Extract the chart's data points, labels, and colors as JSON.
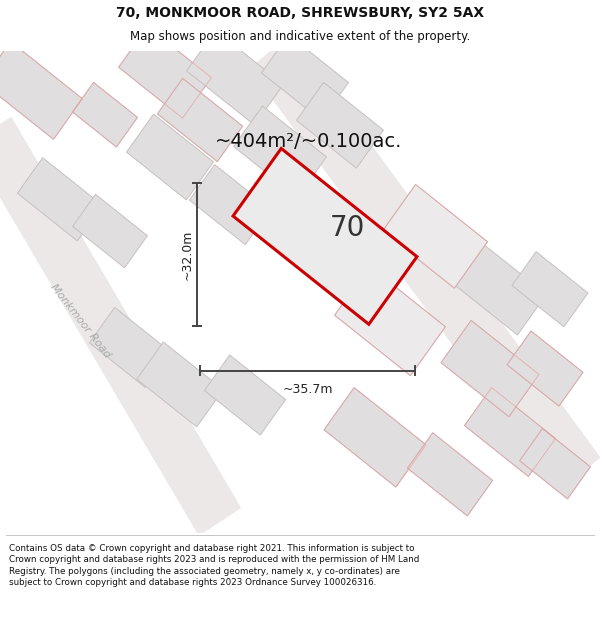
{
  "title_line1": "70, MONKMOOR ROAD, SHREWSBURY, SY2 5AX",
  "title_line2": "Map shows position and indicative extent of the property.",
  "area_text": "~404m²/~0.100ac.",
  "number_label": "70",
  "dim_width": "~35.7m",
  "dim_height": "~32.0m",
  "road_label_upper": "Monkmoor Road",
  "road_label_lower": "Monkmoor Road",
  "footer_text": "Contains OS data © Crown copyright and database right 2021. This information is subject to Crown copyright and database rights 2023 and is reproduced with the permission of HM Land Registry. The polygons (including the associated geometry, namely x, y co-ordinates) are subject to Crown copyright and database rights 2023 Ordnance Survey 100026316.",
  "map_bg": "#f7f3f3",
  "property_fill": "#ebebeb",
  "property_edge": "#cc0000",
  "dim_color": "#444444",
  "building_fill": "#e0dede",
  "building_edge": "#c8c0c0",
  "plot_fill": "#e8e5e5",
  "plot_edge": "#e8a8a8",
  "title_fontsize": 10,
  "subtitle_fontsize": 8.5,
  "area_fontsize": 14,
  "number_fontsize": 20,
  "dim_label_fontsize": 9,
  "road_fontsize": 8,
  "footer_fontsize": 6.3
}
